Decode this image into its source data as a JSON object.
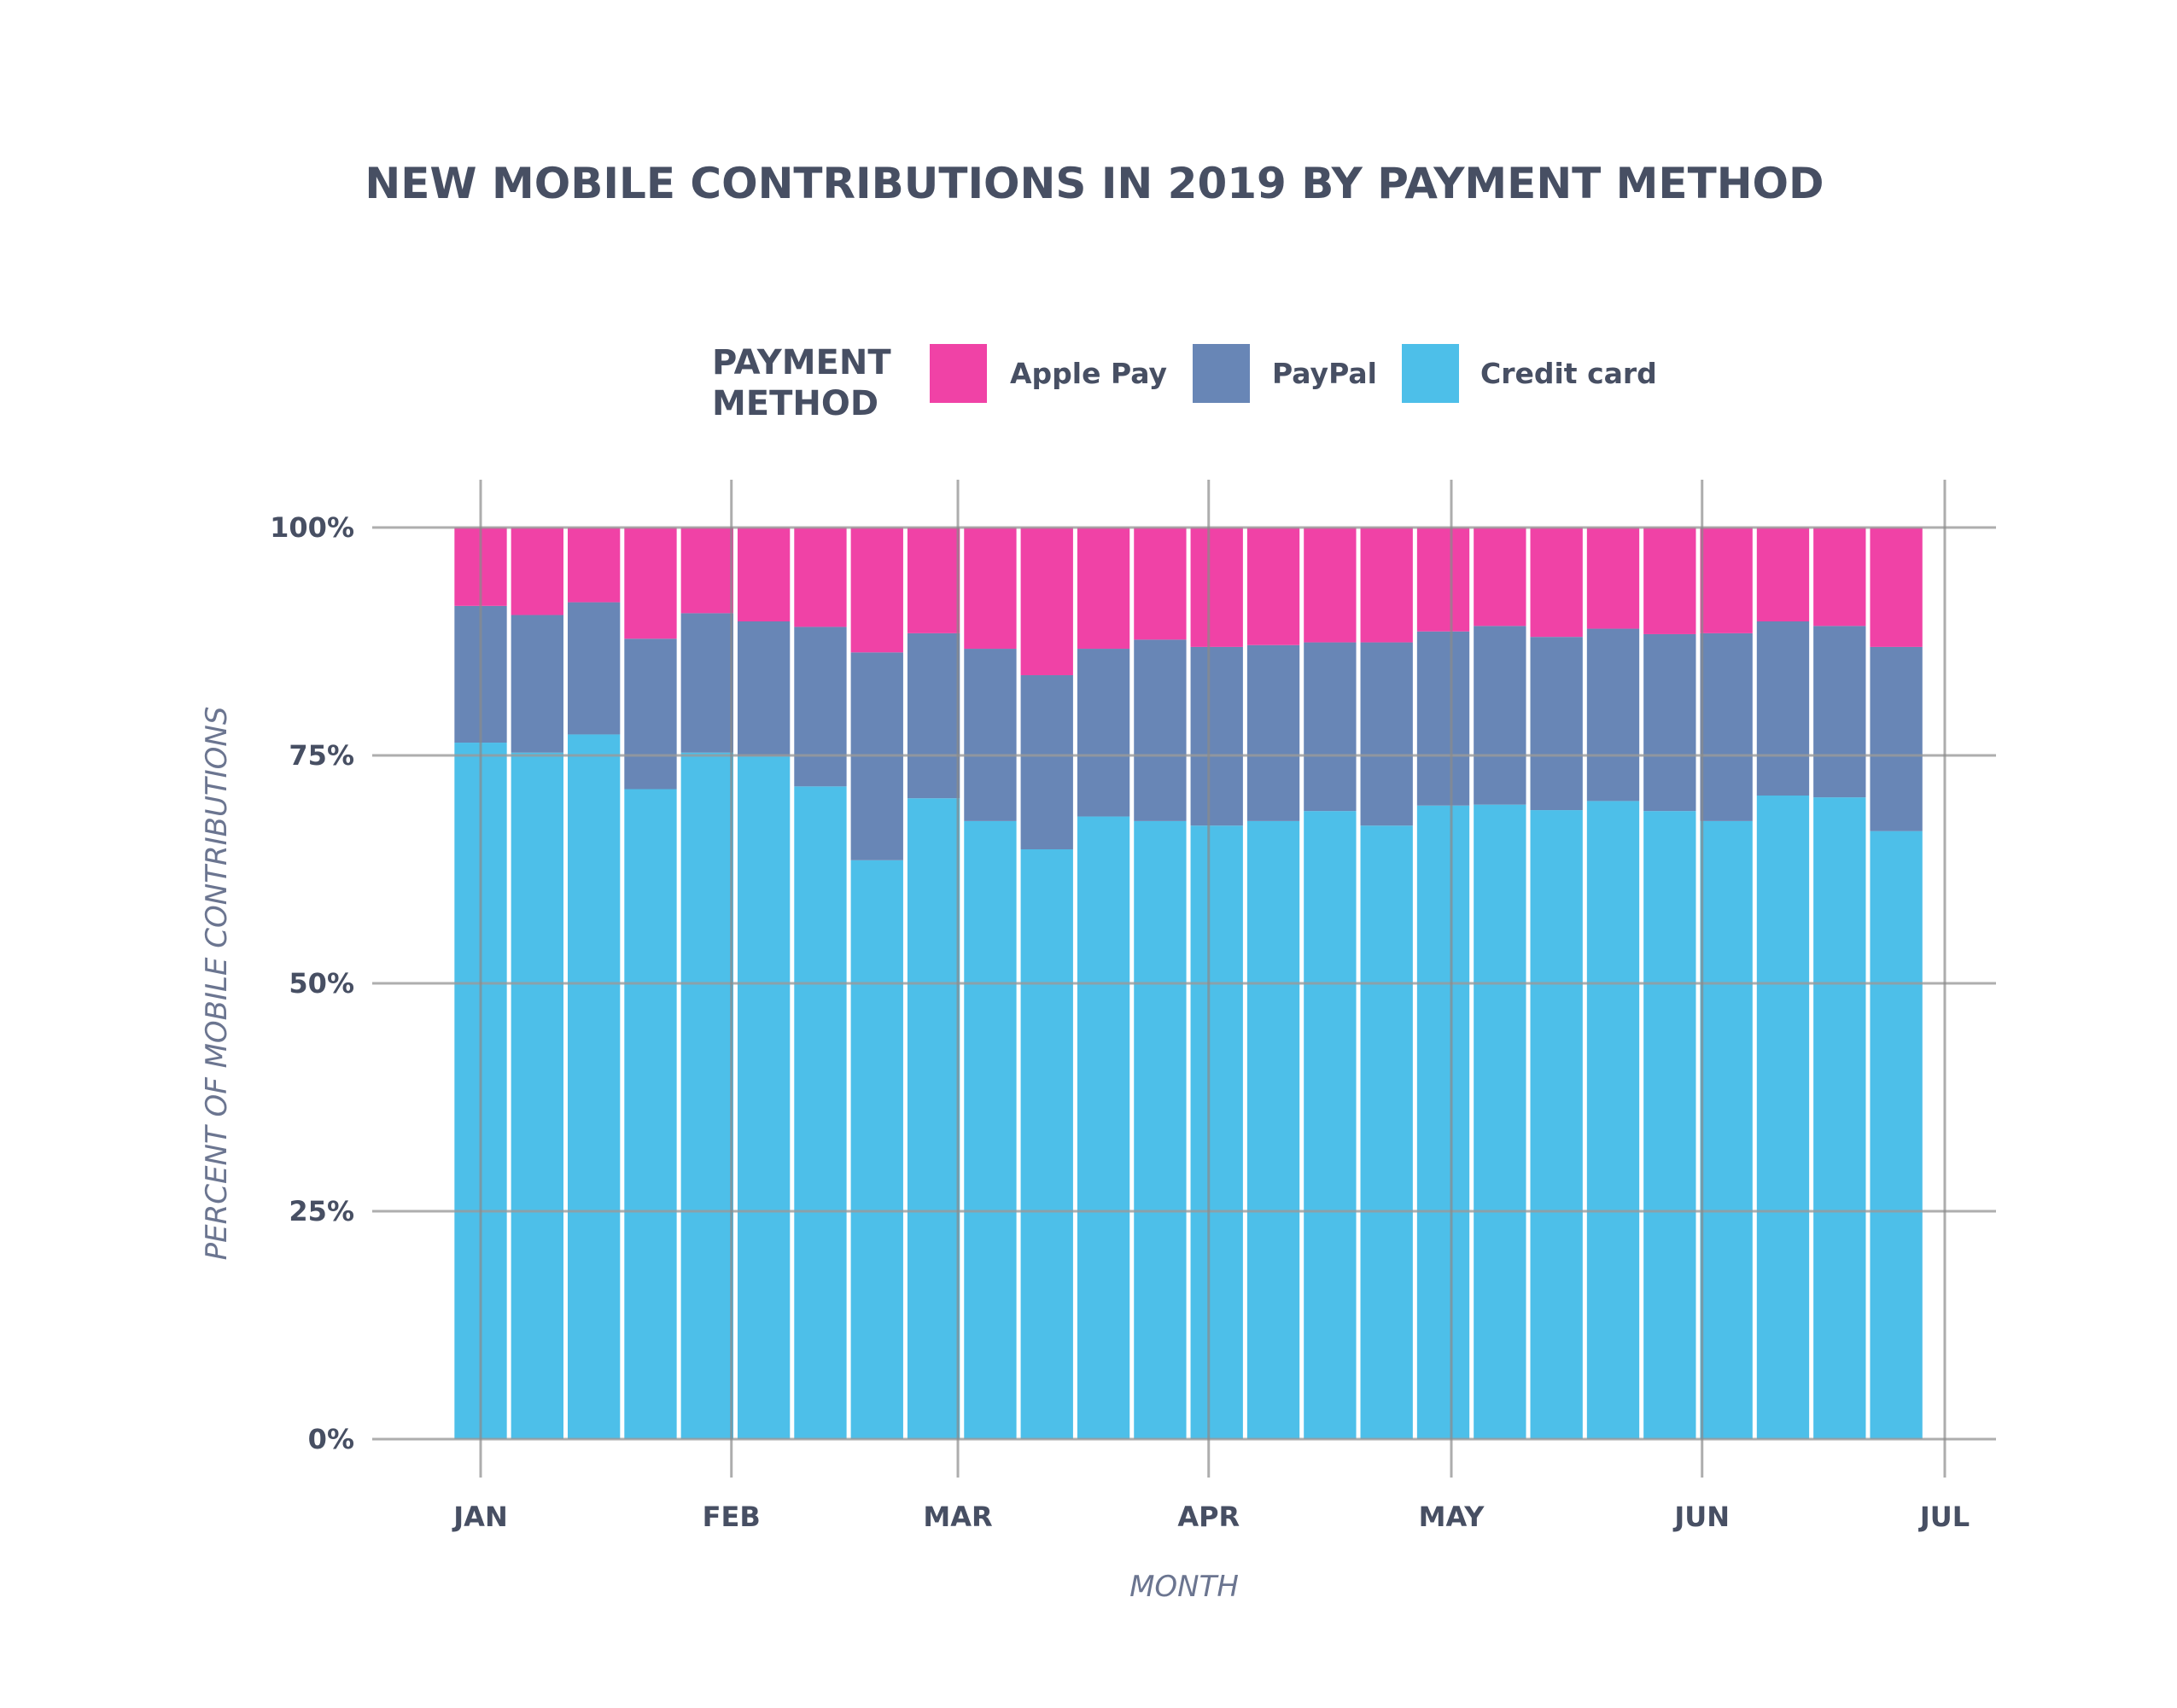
{
  "chart_data": {
    "type": "bar",
    "stacked": true,
    "normalized": true,
    "title": "NEW MOBILE CONTRIBUTIONS IN 2019 BY PAYMENT METHOD",
    "xlabel": "MONTH",
    "ylabel": "PERCENT OF MOBILE CONTRIBUTIONS",
    "legend": {
      "title_line1": "PAYMENT",
      "title_line2": "METHOD",
      "placement": "top"
    },
    "x_ticks": [
      "JAN",
      "FEB",
      "MAR",
      "APR",
      "MAY",
      "JUN",
      "JUL"
    ],
    "x_tick_dates": [
      "2019-01-01",
      "2019-02-01",
      "2019-03-01",
      "2019-04-01",
      "2019-05-01",
      "2019-06-01",
      "2019-07-01"
    ],
    "y_ticks": [
      "0%",
      "25%",
      "50%",
      "75%",
      "100%"
    ],
    "y_tick_values": [
      0,
      25,
      50,
      75,
      100
    ],
    "ylim": [
      0,
      100
    ],
    "grid": true,
    "x": [
      "2019-01-01",
      "2019-01-08",
      "2019-01-15",
      "2019-01-22",
      "2019-01-29",
      "2019-02-05",
      "2019-02-12",
      "2019-02-19",
      "2019-02-26",
      "2019-03-05",
      "2019-03-12",
      "2019-03-19",
      "2019-03-26",
      "2019-04-02",
      "2019-04-09",
      "2019-04-16",
      "2019-04-23",
      "2019-04-30",
      "2019-05-07",
      "2019-05-14",
      "2019-05-21",
      "2019-05-28",
      "2019-06-04",
      "2019-06-11",
      "2019-06-18",
      "2019-06-25"
    ],
    "series": [
      {
        "name": "Credit card",
        "color": "#4dbfe9",
        "values": [
          76.4,
          75.3,
          77.3,
          71.3,
          75.3,
          74.9,
          71.6,
          63.5,
          70.3,
          67.8,
          64.7,
          68.3,
          67.8,
          67.3,
          67.8,
          68.9,
          67.3,
          69.5,
          69.6,
          69.0,
          70.0,
          68.9,
          67.8,
          70.6,
          70.4,
          66.7
        ]
      },
      {
        "name": "PayPal",
        "color": "#6886b6",
        "values": [
          15.0,
          15.1,
          14.5,
          16.5,
          15.3,
          14.8,
          17.5,
          22.8,
          18.1,
          18.9,
          19.1,
          18.4,
          19.9,
          19.6,
          19.3,
          18.5,
          20.1,
          19.1,
          19.6,
          19.0,
          18.9,
          19.4,
          20.6,
          19.1,
          18.8,
          20.2
        ]
      },
      {
        "name": "Apple Pay",
        "color": "#f042a6",
        "values": [
          8.6,
          9.6,
          8.2,
          12.2,
          9.4,
          10.3,
          10.9,
          13.7,
          11.6,
          13.3,
          16.2,
          13.3,
          12.3,
          13.1,
          12.9,
          12.6,
          12.6,
          11.4,
          10.8,
          12.0,
          11.1,
          11.7,
          11.6,
          10.3,
          10.8,
          13.1
        ]
      }
    ]
  }
}
